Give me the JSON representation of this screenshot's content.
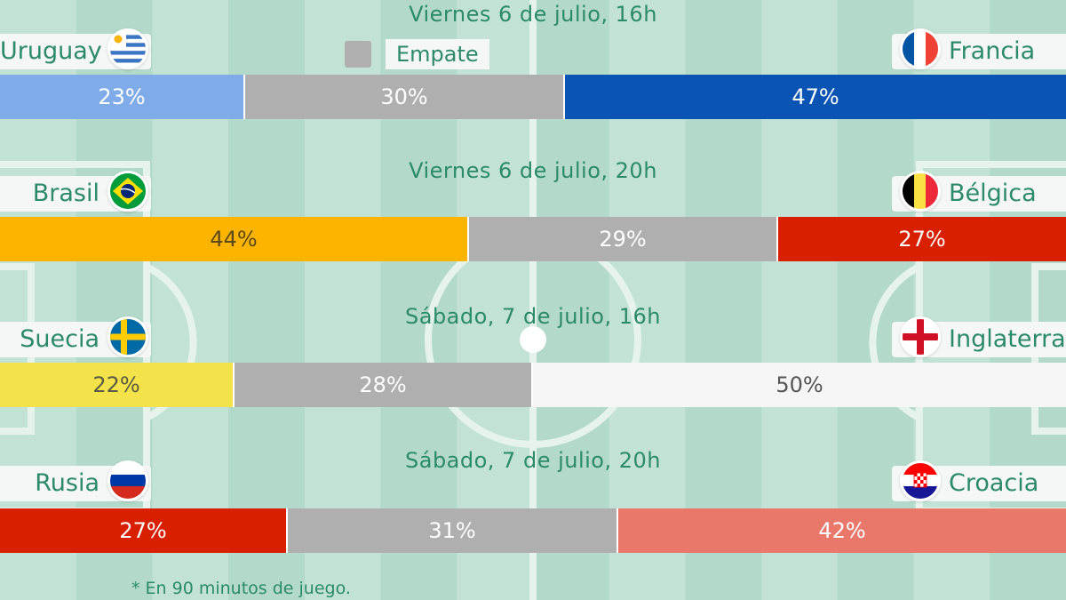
{
  "chart_data": {
    "type": "bar",
    "stacked": true,
    "orientation": "horizontal",
    "legend": {
      "label": "Empate",
      "color": "#afafaf",
      "placement": "top-center"
    },
    "matches": [
      {
        "date": "Viernes 6 de julio, 16h",
        "home": {
          "name": "Uruguay",
          "flag": "flag-uruguay"
        },
        "away": {
          "name": "Francia",
          "flag": "flag-france"
        },
        "values": [
          23,
          30,
          47
        ],
        "labels": [
          "23%",
          "30%",
          "47%"
        ],
        "colors": [
          "#7fabe8",
          "#afafaf",
          "#0a54b3"
        ],
        "text_colors": [
          "#ffffff",
          "#ffffff",
          "#ffffff"
        ]
      },
      {
        "date": "Viernes 6 de julio, 20h",
        "home": {
          "name": "Brasil",
          "flag": "flag-brazil"
        },
        "away": {
          "name": "Bélgica",
          "flag": "flag-belgium"
        },
        "values": [
          44,
          29,
          27
        ],
        "labels": [
          "44%",
          "29%",
          "27%"
        ],
        "colors": [
          "#fdb400",
          "#afafaf",
          "#d81f00"
        ],
        "text_colors": [
          "#5a4a1a",
          "#ffffff",
          "#ffffff"
        ]
      },
      {
        "date": "Sábado, 7 de julio, 16h",
        "home": {
          "name": "Suecia",
          "flag": "flag-sweden"
        },
        "away": {
          "name": "Inglaterra",
          "flag": "flag-england"
        },
        "values": [
          22,
          28,
          50
        ],
        "labels": [
          "22%",
          "28%",
          "50%"
        ],
        "colors": [
          "#f3e249",
          "#afafaf",
          "#f5f5f5"
        ],
        "text_colors": [
          "#5a5a40",
          "#ffffff",
          "#555555"
        ]
      },
      {
        "date": "Sábado, 7 de julio, 20h",
        "home": {
          "name": "Rusia",
          "flag": "flag-russia"
        },
        "away": {
          "name": "Croacia",
          "flag": "flag-croatia"
        },
        "values": [
          27,
          31,
          42
        ],
        "labels": [
          "27%",
          "31%",
          "42%"
        ],
        "colors": [
          "#d81f00",
          "#afafaf",
          "#e9776a"
        ],
        "text_colors": [
          "#ffffff",
          "#ffffff",
          "#ffffff"
        ]
      }
    ],
    "footnote": "* En 90 minutos de juego."
  },
  "colors": {
    "pitch_light": "#c1e2d4",
    "pitch_dark": "#b2d9c9",
    "pitch_line": "#e6f3ed",
    "text_green": "#2c8a6a"
  }
}
